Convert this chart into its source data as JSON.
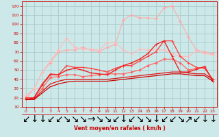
{
  "title": "",
  "xlabel": "Vent moyen/en rafales ( km/h )",
  "ylabel": "",
  "background_color": "#cce8e8",
  "grid_color": "#aacccc",
  "x": [
    0,
    1,
    2,
    3,
    4,
    5,
    6,
    7,
    8,
    9,
    10,
    11,
    12,
    13,
    14,
    15,
    16,
    17,
    18,
    19,
    20,
    21,
    22,
    23
  ],
  "series": [
    {
      "color": "#ffaaaa",
      "lw": 0.8,
      "marker": "D",
      "ms": 1.8,
      "data": [
        19,
        30,
        48,
        58,
        70,
        72,
        72,
        75,
        72,
        70,
        75,
        78,
        105,
        110,
        107,
        107,
        106,
        118,
        120,
        103,
        86,
        72,
        70,
        68
      ]
    },
    {
      "color": "#ffbbbb",
      "lw": 0.8,
      "marker": "D",
      "ms": 1.8,
      "data": [
        22,
        30,
        48,
        60,
        72,
        85,
        75,
        73,
        73,
        72,
        80,
        80,
        72,
        68,
        73,
        72,
        72,
        72,
        68,
        65,
        65,
        71,
        68,
        67
      ]
    },
    {
      "color": "#ff6666",
      "lw": 0.9,
      "marker": "D",
      "ms": 1.8,
      "data": [
        20,
        20,
        30,
        42,
        43,
        45,
        45,
        43,
        44,
        45,
        46,
        46,
        46,
        48,
        50,
        55,
        58,
        62,
        62,
        58,
        50,
        52,
        53,
        40
      ]
    },
    {
      "color": "#ff4444",
      "lw": 1.0,
      "marker": "+",
      "ms": 3.0,
      "data": [
        20,
        20,
        35,
        46,
        45,
        55,
        53,
        53,
        52,
        50,
        48,
        52,
        55,
        55,
        60,
        65,
        70,
        82,
        82,
        65,
        58,
        53,
        52,
        40
      ]
    },
    {
      "color": "#ee2222",
      "lw": 1.0,
      "marker": "+",
      "ms": 3.0,
      "data": [
        18,
        20,
        34,
        45,
        45,
        50,
        52,
        50,
        47,
        46,
        45,
        50,
        55,
        58,
        62,
        68,
        78,
        82,
        65,
        48,
        48,
        51,
        54,
        38
      ]
    },
    {
      "color": "#dd1111",
      "lw": 0.9,
      "marker": null,
      "ms": 0,
      "data": [
        18,
        19,
        27,
        35,
        38,
        40,
        40,
        40,
        40,
        40,
        40,
        41,
        42,
        43,
        44,
        45,
        46,
        47,
        48,
        48,
        47,
        46,
        46,
        40
      ]
    },
    {
      "color": "#cc0000",
      "lw": 0.9,
      "marker": null,
      "ms": 0,
      "data": [
        18,
        18,
        25,
        32,
        35,
        37,
        38,
        38,
        38,
        38,
        38,
        39,
        40,
        41,
        42,
        43,
        44,
        45,
        46,
        46,
        45,
        44,
        44,
        38
      ]
    }
  ],
  "arrow_chars": [
    "↙",
    "↓",
    "↓",
    "↙",
    "↙",
    "↘",
    "↘",
    "↘",
    "→",
    "↘",
    "↘",
    "↙",
    "↓",
    "↙",
    "↘",
    "↘",
    "↓",
    "↙",
    "↙",
    "↘",
    "↗",
    "↙",
    "↓",
    "↓"
  ],
  "ylim": [
    10,
    125
  ],
  "yticks": [
    10,
    20,
    30,
    40,
    50,
    60,
    70,
    80,
    90,
    100,
    110,
    120
  ],
  "xlim": [
    -0.5,
    23.5
  ],
  "xticks": [
    0,
    1,
    2,
    3,
    4,
    5,
    6,
    7,
    8,
    9,
    10,
    11,
    12,
    13,
    14,
    15,
    16,
    17,
    18,
    19,
    20,
    21,
    22,
    23
  ]
}
